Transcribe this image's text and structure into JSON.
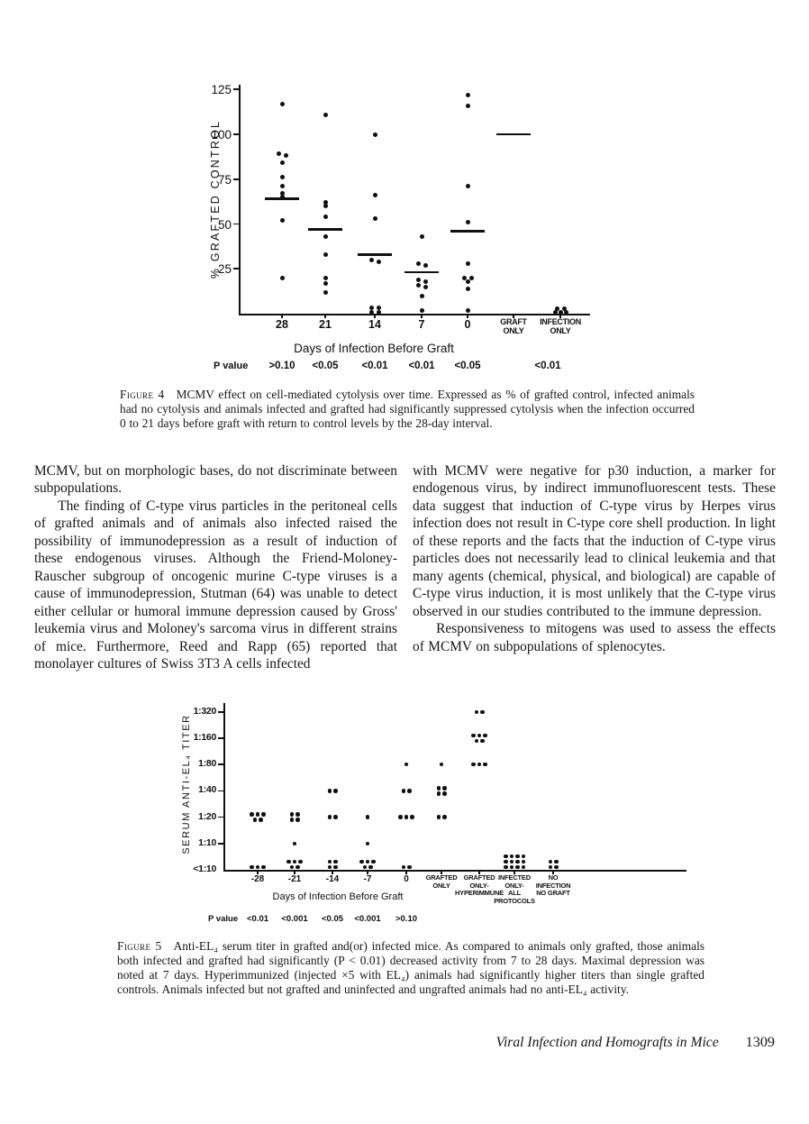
{
  "page": {
    "footer": {
      "running_title": "Viral Infection and Homografts in Mice",
      "page_number": "1309"
    }
  },
  "figure4": {
    "caption_label": "Figure 4",
    "caption_text": "MCMV effect on cell-mediated cytolysis over time. Expressed as % of grafted control, infected animals had no cytolysis and animals infected and grafted had significantly suppressed cytolysis when the infection occurred 0 to 21 days before graft with return to control levels by the 28-day interval."
  },
  "figure5": {
    "caption_label": "Figure 5",
    "caption_text": "Anti-EL₄ serum titer in grafted and(or) infected mice. As compared to animals only grafted, those animals both infected and grafted had significantly (P < 0.01) decreased activity from 7 to 28 days. Maximal depression was noted at 7 days. Hyperimmunized (injected ×5 with EL₄) animals had significantly higher titers than single grafted controls. Animals infected but not grafted and uninfected and ungrafted animals had no anti-EL₄ activity."
  },
  "body": {
    "left_column": [
      "MCMV, but on morphologic bases, do not discriminate between subpopulations.",
      "The finding of C-type virus particles in the peritoneal cells of grafted animals and of animals also infected raised the possibility of immunodepression as a result of induction of these endogenous viruses. Although the Friend-Moloney-Rauscher subgroup of oncogenic murine C-type viruses is a cause of immunodepression, Stutman (64) was unable to detect either cellular or humoral immune depression caused by Gross' leukemia virus and Moloney's sarcoma virus in different strains of mice. Furthermore, Reed and Rapp (65) reported that monolayer cultures of Swiss 3T3 A cells infected"
    ],
    "right_column": [
      "with MCMV were negative for p30 induction, a marker for endogenous virus, by indirect immunofluorescent tests. These data suggest that induction of C-type virus by Herpes virus infection does not result in C-type core shell production. In light of these reports and the facts that the induction of C-type virus particles does not necessarily lead to clinical leukemia and that many agents (chemical, physical, and biological) are capable of C-type virus induction, it is most unlikely that the C-type virus observed in our studies contributed to the immune depression.",
      "Responsiveness to mitogens was used to assess the effects of MCMV on subpopulations of splenocytes."
    ]
  },
  "chart_data": [
    {
      "type": "scatter",
      "figure": "Figure 4",
      "title": "",
      "ylabel": "% GRAFTED CONTROL",
      "xlabel": "Days of Infection Before Graft",
      "ylim": [
        0,
        130
      ],
      "yticks": [
        125,
        100,
        75,
        50,
        25
      ],
      "grid": false,
      "p_label": "P value",
      "categories": [
        {
          "lines": [
            "28"
          ],
          "p": ">0.10",
          "mean": 64,
          "values": [
            117,
            89,
            88,
            84,
            76,
            71,
            67,
            65,
            52,
            20
          ]
        },
        {
          "lines": [
            "21"
          ],
          "p": "<0.05",
          "mean": 47,
          "values": [
            111,
            62,
            60,
            54,
            43,
            33,
            20,
            17,
            12
          ]
        },
        {
          "lines": [
            "14"
          ],
          "p": "<0.01",
          "mean": 33,
          "values": [
            100,
            66,
            53,
            30,
            29,
            2,
            2,
            1,
            1
          ]
        },
        {
          "lines": [
            "7"
          ],
          "p": "<0.01",
          "mean": 23,
          "values": [
            43,
            28,
            27,
            19,
            18,
            16,
            15,
            10,
            2
          ]
        },
        {
          "lines": [
            "0"
          ],
          "p": "<0.05",
          "mean": 46,
          "values": [
            122,
            116,
            71,
            51,
            28,
            20,
            20,
            18,
            14,
            2
          ]
        },
        {
          "lines": [
            "GRAFT",
            "ONLY"
          ],
          "p": "",
          "mean": 100,
          "values": []
        },
        {
          "lines": [
            "INFECTION",
            "ONLY"
          ],
          "p": "<0.01",
          "p_dx": -14,
          "mean": null,
          "values": [
            3,
            3,
            1,
            1,
            1
          ]
        }
      ]
    },
    {
      "type": "scatter",
      "figure": "Figure 5",
      "title": "",
      "ylabel": "SERUM ANTI-EL₄ TITER",
      "xlabel": "Days of Infection Before Graft",
      "scale": "titer-log2",
      "yticks": [
        "1:320",
        "1:160",
        "1:80",
        "1:40",
        "1:20",
        "1:10",
        "<1:10"
      ],
      "grid": false,
      "p_label": "P value",
      "categories": [
        {
          "lines": [
            "-28"
          ],
          "p": "<0.01",
          "points": [
            {
              "titer": "1:20",
              "n": 5
            },
            {
              "titer": "<1:10",
              "n": 3
            }
          ]
        },
        {
          "lines": [
            "-21"
          ],
          "p": "<0.001",
          "points": [
            {
              "titer": "1:20",
              "n": 4
            },
            {
              "titer": "1:10",
              "n": 1
            },
            {
              "titer": "<1:10",
              "n": 5
            }
          ]
        },
        {
          "lines": [
            "-14"
          ],
          "p": "<0.05",
          "points": [
            {
              "titer": "1:40",
              "n": 2
            },
            {
              "titer": "1:20",
              "n": 2
            },
            {
              "titer": "<1:10",
              "n": 4
            }
          ]
        },
        {
          "lines": [
            "-7"
          ],
          "p": "<0.001",
          "points": [
            {
              "titer": "1:20",
              "n": 1
            },
            {
              "titer": "1:10",
              "n": 1
            },
            {
              "titer": "<1:10",
              "n": 5
            }
          ]
        },
        {
          "lines": [
            "0"
          ],
          "p": ">0.10",
          "points": [
            {
              "titer": "1:80",
              "n": 1
            },
            {
              "titer": "1:40",
              "n": 2
            },
            {
              "titer": "1:20",
              "n": 3
            },
            {
              "titer": "<1:10",
              "n": 2
            }
          ]
        },
        {
          "lines": [
            "GRAFTED",
            "ONLY"
          ],
          "p": "",
          "points": [
            {
              "titer": "1:80",
              "n": 1
            },
            {
              "titer": "1:40",
              "n": 4
            },
            {
              "titer": "1:20",
              "n": 2
            }
          ]
        },
        {
          "lines": [
            "GRAFTED",
            "ONLY-",
            "HYPERIMMUNE"
          ],
          "p": "",
          "points": [
            {
              "titer": "1:320",
              "n": 2
            },
            {
              "titer": "1:160",
              "n": 5
            },
            {
              "titer": "1:80",
              "n": 3
            }
          ]
        },
        {
          "lines": [
            "INFECTED",
            "ONLY-",
            "ALL",
            "PROTOCOLS"
          ],
          "p": "",
          "points": [
            {
              "titer": "<1:10",
              "n": 12
            }
          ]
        },
        {
          "lines": [
            "NO",
            "INFECTION",
            "NO GRAFT"
          ],
          "p": "",
          "points": [
            {
              "titer": "<1:10",
              "n": 4
            }
          ]
        }
      ]
    }
  ]
}
